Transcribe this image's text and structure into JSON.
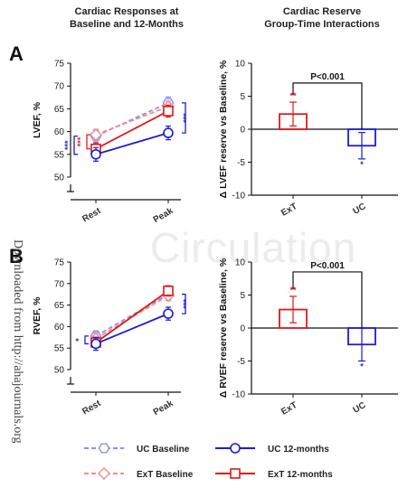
{
  "figure": {
    "left_title": [
      "Cardiac Responses at",
      "Baseline and 12-Months"
    ],
    "right_title": [
      "Cardiac  Reserve",
      "Group-Time Interactions"
    ],
    "watermark": "Circulation",
    "side_text": "Downloaded from http://ahajournals.org",
    "legend": [
      {
        "label": "UC Baseline",
        "color": "#8c8cf0",
        "marker": "hexagon",
        "dashed": true
      },
      {
        "label": "UC 12-months",
        "color": "#1c1cd6",
        "marker": "circle",
        "dashed": false
      },
      {
        "label": "ExT Baseline",
        "color": "#f08c8c",
        "marker": "diamond",
        "dashed": true
      },
      {
        "label": "ExT 12-months",
        "color": "#e01818",
        "marker": "square",
        "dashed": false
      }
    ],
    "colors": {
      "uc_base": "#8c8cf0",
      "uc_12": "#1c1cd6",
      "ext_base": "#f08c8c",
      "ext_12": "#e01818"
    }
  },
  "chart_data": [
    {
      "panel": "A",
      "type": "line",
      "ylabel": "LVEF, %",
      "ylim": [
        50,
        75
      ],
      "yticks": [
        50,
        55,
        60,
        65,
        70,
        75
      ],
      "categories": [
        "Rest",
        "Peak"
      ],
      "series": [
        {
          "name": "UC Baseline",
          "values": [
            59,
            66.3
          ],
          "err": [
            1.3,
            1.3
          ],
          "color": "#8c8cf0"
        },
        {
          "name": "ExT Baseline",
          "values": [
            59.3,
            65.5
          ],
          "err": [
            1.2,
            1.2
          ],
          "color": "#f08c8c"
        },
        {
          "name": "ExT 12-months",
          "values": [
            56.2,
            64.5
          ],
          "err": [
            1.3,
            1.3
          ],
          "color": "#e01818"
        },
        {
          "name": "UC 12-months",
          "values": [
            55,
            59.7
          ],
          "err": [
            1.5,
            1.5
          ],
          "color": "#1c1cd6"
        }
      ],
      "annotations": [
        {
          "text": "***",
          "color": "#1c1cd6",
          "pos": "rest-outer"
        },
        {
          "text": "***",
          "color": "#e01818",
          "pos": "rest-inner"
        },
        {
          "text": "***",
          "color": "#1c1cd6",
          "pos": "peak"
        }
      ]
    },
    {
      "panel": "A",
      "type": "bar",
      "ylabel": "Δ LVEF reserve vs  Baseline, %",
      "ylim": [
        -10,
        10
      ],
      "yticks": [
        -10,
        -5,
        0,
        5,
        10
      ],
      "categories": [
        "ExT",
        "UC"
      ],
      "values": [
        2.3,
        -2.5
      ],
      "err": [
        1.8,
        2.0
      ],
      "bar_sig": [
        "**",
        "*"
      ],
      "pvalue": "P<0.001"
    },
    {
      "panel": "B",
      "type": "line",
      "ylabel": "RVEF, %",
      "ylim": [
        50,
        75
      ],
      "yticks": [
        50,
        55,
        60,
        65,
        70,
        75
      ],
      "categories": [
        "Rest",
        "Peak"
      ],
      "series": [
        {
          "name": "UC Baseline",
          "values": [
            57.8,
            67.5
          ],
          "err": [
            1.2,
            1.2
          ],
          "color": "#8c8cf0"
        },
        {
          "name": "ExT Baseline",
          "values": [
            57.2,
            67.2
          ],
          "err": [
            1.2,
            1.2
          ],
          "color": "#f08c8c"
        },
        {
          "name": "ExT 12-months",
          "values": [
            56.3,
            68.3
          ],
          "err": [
            1.2,
            1.2
          ],
          "color": "#e01818"
        },
        {
          "name": "UC 12-months",
          "values": [
            56,
            63
          ],
          "err": [
            1.5,
            1.5
          ],
          "color": "#1c1cd6"
        }
      ],
      "annotations": [
        {
          "text": "*",
          "color": "#1c1cd6",
          "pos": "rest-outer"
        },
        {
          "text": "***",
          "color": "#1c1cd6",
          "pos": "peak"
        }
      ]
    },
    {
      "panel": "B",
      "type": "bar",
      "ylabel": "Δ RVEF reserve vs Baseline, %",
      "ylim": [
        -10,
        10
      ],
      "yticks": [
        -10,
        -5,
        0,
        5,
        10
      ],
      "categories": [
        "ExT",
        "UC"
      ],
      "values": [
        2.8,
        -2.5
      ],
      "err": [
        2.0,
        2.5
      ],
      "bar_sig": [
        "**",
        "*"
      ],
      "pvalue": "P<0.001"
    }
  ]
}
